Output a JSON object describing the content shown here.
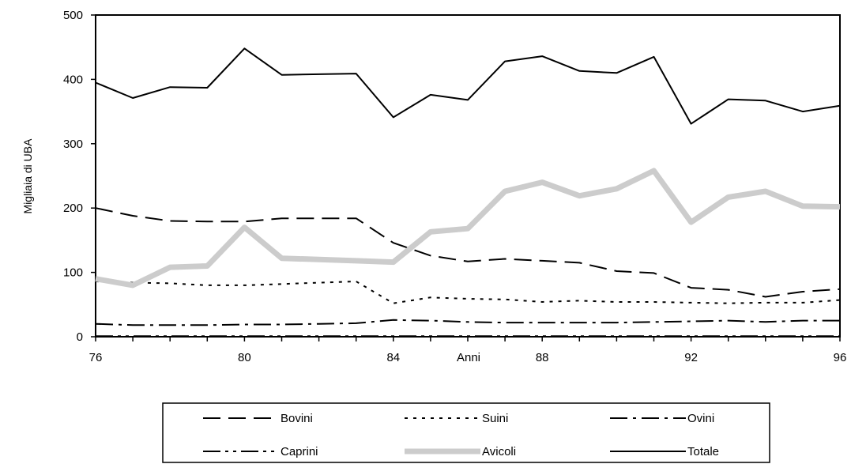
{
  "chart_data": {
    "type": "line",
    "title": "",
    "ylabel": "Migliaia di UBA",
    "xlabel_inline": "Anni",
    "ylim": [
      0,
      500
    ],
    "xlim": [
      76,
      96
    ],
    "y_ticks": [
      "0",
      "100",
      "200",
      "300",
      "400",
      "500"
    ],
    "x_ticks": [
      "76",
      "80",
      "84",
      "88",
      "92",
      "96"
    ],
    "grid": false,
    "legend_position": "bottom",
    "x": [
      76,
      77,
      78,
      79,
      80,
      81,
      82,
      83,
      84,
      85,
      86,
      87,
      88,
      89,
      90,
      91,
      92,
      93,
      94,
      95,
      96
    ],
    "series": [
      {
        "name": "Bovini",
        "style": "long-dash",
        "color": "#000000",
        "values": [
          200,
          188,
          180,
          179,
          179,
          184,
          184,
          184,
          146,
          126,
          117,
          121,
          118,
          115,
          102,
          99,
          76,
          73,
          62,
          70,
          74
        ]
      },
      {
        "name": "Suini",
        "style": "dot",
        "color": "#000000",
        "values": [
          86,
          84,
          83,
          80,
          80,
          82,
          84,
          86,
          52,
          61,
          59,
          58,
          54,
          56,
          54,
          54,
          53,
          52,
          53,
          53,
          57
        ]
      },
      {
        "name": "Ovini",
        "style": "dash-dot",
        "color": "#000000",
        "values": [
          20,
          18,
          18,
          18,
          19,
          19,
          20,
          21,
          26,
          25,
          23,
          22,
          22,
          22,
          22,
          23,
          24,
          25,
          23,
          25,
          25
        ]
      },
      {
        "name": "Caprini",
        "style": "dash-dot-dot",
        "color": "#000000",
        "values": [
          1,
          1,
          1,
          1,
          1,
          1,
          1,
          1,
          1,
          1,
          1,
          1,
          1,
          1,
          1,
          1,
          1,
          1,
          1,
          1,
          1
        ]
      },
      {
        "name": "Avicoli",
        "style": "thick-light",
        "color": "#cccccc",
        "values": [
          90,
          80,
          108,
          110,
          170,
          122,
          120,
          118,
          116,
          163,
          168,
          226,
          240,
          219,
          230,
          258,
          178,
          217,
          226,
          203,
          202
        ]
      },
      {
        "name": "Totale",
        "style": "solid",
        "color": "#000000",
        "values": [
          395,
          371,
          388,
          387,
          448,
          407,
          408,
          409,
          341,
          376,
          368,
          428,
          436,
          413,
          410,
          435,
          331,
          369,
          367,
          350,
          359
        ]
      }
    ]
  }
}
